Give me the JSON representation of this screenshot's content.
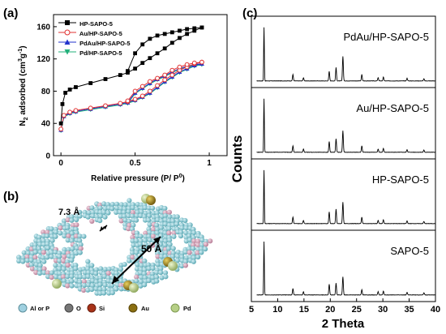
{
  "panels": {
    "a": "(a)",
    "b": "(b)",
    "c": "(c)"
  },
  "chart_data": [
    {
      "type": "line",
      "panel": "(a)",
      "xlabel": "Relative pressure (P/ P",
      "xlabel_sup": "0",
      "xlabel_end": ")",
      "ylabel_pre": "N",
      "ylabel_sub": "2",
      "ylabel_mid": " adsorbed (cm",
      "ylabel_sup1": "3",
      "ylabel_g": "g",
      "ylabel_sup2": "-1",
      "ylabel_end": ")",
      "xlim": [
        -0.05,
        1.12
      ],
      "ylim": [
        0,
        175
      ],
      "xticks": [
        "0",
        "0.5",
        "1"
      ],
      "xtick_values": [
        0,
        0.5,
        1
      ],
      "yticks": [
        "0",
        "40",
        "80",
        "120",
        "160"
      ],
      "ytick_values": [
        0,
        40,
        80,
        120,
        160
      ],
      "legend_position": "top-left",
      "series": [
        {
          "name": "HP-SAPO-5",
          "color": "#000000",
          "marker": "square",
          "adsorption": {
            "x": [
              0.0,
              0.01,
              0.03,
              0.06,
              0.1,
              0.2,
              0.3,
              0.4,
              0.45,
              0.5,
              0.55,
              0.6,
              0.65,
              0.7,
              0.75,
              0.8,
              0.85,
              0.9,
              0.95
            ],
            "y": [
              40,
              64,
              78,
              82,
              85,
              90,
              95,
              100,
              103,
              108,
              115,
              121,
              127,
              133,
              140,
              146,
              151,
              155,
              159
            ]
          },
          "desorption": {
            "x": [
              0.95,
              0.9,
              0.85,
              0.8,
              0.75,
              0.7,
              0.65,
              0.6,
              0.55,
              0.5,
              0.45
            ],
            "y": [
              159,
              158,
              157,
              155,
              153,
              151,
              149,
              145,
              138,
              127,
              105
            ]
          }
        },
        {
          "name": "Au/HP-SAPO-5",
          "color": "#e03030",
          "marker": "circle",
          "adsorption": {
            "x": [
              0.0,
              0.02,
              0.06,
              0.1,
              0.2,
              0.3,
              0.4,
              0.45,
              0.5,
              0.55,
              0.6,
              0.65,
              0.7,
              0.75,
              0.8,
              0.85,
              0.9,
              0.95
            ],
            "y": [
              33,
              50,
              54,
              56,
              59,
              62,
              65,
              67,
              70,
              74,
              80,
              87,
              94,
              100,
              106,
              110,
              114,
              116
            ]
          },
          "desorption": {
            "x": [
              0.95,
              0.9,
              0.85,
              0.8,
              0.75,
              0.7,
              0.65,
              0.6,
              0.55,
              0.5,
              0.45
            ],
            "y": [
              116,
              115,
              113,
              110,
              106,
              100,
              96,
              92,
              86,
              80,
              68
            ]
          }
        },
        {
          "name": "PdAu/HP-SAPO-5",
          "color": "#2233cc",
          "marker": "triangle-up",
          "adsorption": {
            "x": [
              0.0,
              0.02,
              0.06,
              0.1,
              0.2,
              0.3,
              0.4,
              0.45,
              0.5,
              0.55,
              0.6,
              0.65,
              0.7,
              0.75,
              0.8,
              0.85,
              0.9,
              0.95
            ],
            "y": [
              32,
              49,
              53,
              55,
              58,
              61,
              64,
              66,
              69,
              73,
              78,
              85,
              92,
              98,
              104,
              108,
              112,
              114
            ]
          },
          "desorption": {
            "x": [
              0.95,
              0.9,
              0.85,
              0.8,
              0.75,
              0.7,
              0.65,
              0.6,
              0.55,
              0.5,
              0.45
            ],
            "y": [
              114,
              113,
              111,
              108,
              104,
              99,
              95,
              90,
              84,
              78,
              66
            ]
          }
        },
        {
          "name": "Pd/HP-SAPO-5",
          "color": "#22b07a",
          "marker": "triangle-down",
          "adsorption": {
            "x": [
              0.0,
              0.02,
              0.06,
              0.1,
              0.2,
              0.3,
              0.4,
              0.45,
              0.5,
              0.55,
              0.6,
              0.65,
              0.7,
              0.75,
              0.8,
              0.85,
              0.9,
              0.95
            ],
            "y": [
              31,
              48,
              52,
              54,
              57,
              60,
              63,
              65,
              68,
              72,
              77,
              84,
              91,
              97,
              103,
              107,
              111,
              113
            ]
          },
          "desorption": {
            "x": [
              0.95,
              0.9,
              0.85,
              0.8,
              0.75,
              0.7,
              0.65,
              0.6,
              0.55,
              0.5,
              0.45
            ],
            "y": [
              113,
              112,
              110,
              107,
              103,
              98,
              94,
              89,
              83,
              77,
              65
            ]
          }
        }
      ]
    },
    {
      "type": "line",
      "panel": "(c)",
      "xlabel": "2 Theta",
      "ylabel": "Counts",
      "xlim": [
        5,
        40
      ],
      "xticks": [
        "5",
        "10",
        "15",
        "20",
        "25",
        "30",
        "35",
        "40"
      ],
      "xtick_values": [
        5,
        10,
        15,
        20,
        25,
        30,
        35,
        40
      ],
      "stacked": true,
      "peaks_2theta": [
        7.4,
        12.9,
        14.9,
        19.8,
        21.1,
        22.4,
        26.0,
        29.1,
        30.1,
        34.6,
        37.8
      ],
      "series": [
        {
          "name": "PdAu/HP-SAPO-5",
          "intensity": [
            1.0,
            0.12,
            0.06,
            0.18,
            0.25,
            0.46,
            0.12,
            0.06,
            0.07,
            0.05,
            0.04
          ]
        },
        {
          "name": "Au/HP-SAPO-5",
          "intensity": [
            1.0,
            0.12,
            0.06,
            0.2,
            0.25,
            0.4,
            0.12,
            0.06,
            0.07,
            0.05,
            0.04
          ]
        },
        {
          "name": "HP-SAPO-5",
          "intensity": [
            1.0,
            0.12,
            0.06,
            0.22,
            0.27,
            0.4,
            0.12,
            0.06,
            0.07,
            0.05,
            0.04
          ]
        },
        {
          "name": "SAPO-5",
          "intensity": [
            1.0,
            0.12,
            0.06,
            0.2,
            0.22,
            0.34,
            0.1,
            0.06,
            0.07,
            0.05,
            0.04
          ]
        }
      ]
    }
  ],
  "structure": {
    "pore_small": "7.3 Å",
    "pore_large": "50 Å",
    "legend": [
      {
        "label": "Al or P",
        "color": "#9fd0e0"
      },
      {
        "label": "O",
        "color": "#777777"
      },
      {
        "label": "Si",
        "color": "#a83218"
      },
      {
        "label": "Au",
        "color": "#8a6e10"
      },
      {
        "label": "Pd",
        "color": "#b6cf86"
      }
    ]
  }
}
